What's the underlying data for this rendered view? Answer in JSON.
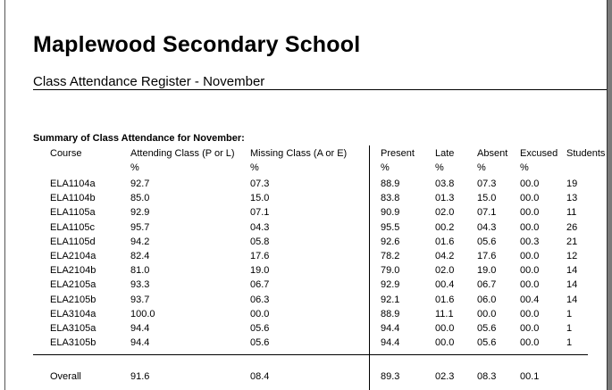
{
  "title": "Maplewood Secondary School",
  "subtitle": "Class Attendance Register - November",
  "summary_heading": "Summary of Class Attendance for November:",
  "headers": {
    "course": "Course",
    "attending": "Attending Class (P or L)",
    "missing": "Missing Class (A or E)",
    "present": "Present",
    "late": "Late",
    "absent": "Absent",
    "excused": "Excused",
    "students": "Students",
    "pct": "%"
  },
  "rows": [
    {
      "course": "ELA1104a",
      "attending": "92.7",
      "missing": "07.3",
      "present": "88.9",
      "late": "03.8",
      "absent": "07.3",
      "excused": "00.0",
      "students": "19"
    },
    {
      "course": "ELA1104b",
      "attending": "85.0",
      "missing": "15.0",
      "present": "83.8",
      "late": "01.3",
      "absent": "15.0",
      "excused": "00.0",
      "students": "13"
    },
    {
      "course": "ELA1105a",
      "attending": "92.9",
      "missing": "07.1",
      "present": "90.9",
      "late": "02.0",
      "absent": "07.1",
      "excused": "00.0",
      "students": "11"
    },
    {
      "course": "ELA1105c",
      "attending": "95.7",
      "missing": "04.3",
      "present": "95.5",
      "late": "00.2",
      "absent": "04.3",
      "excused": "00.0",
      "students": "26"
    },
    {
      "course": "ELA1105d",
      "attending": "94.2",
      "missing": "05.8",
      "present": "92.6",
      "late": "01.6",
      "absent": "05.6",
      "excused": "00.3",
      "students": "21"
    },
    {
      "course": "ELA2104a",
      "attending": "82.4",
      "missing": "17.6",
      "present": "78.2",
      "late": "04.2",
      "absent": "17.6",
      "excused": "00.0",
      "students": "12"
    },
    {
      "course": "ELA2104b",
      "attending": "81.0",
      "missing": "19.0",
      "present": "79.0",
      "late": "02.0",
      "absent": "19.0",
      "excused": "00.0",
      "students": "14"
    },
    {
      "course": "ELA2105a",
      "attending": "93.3",
      "missing": "06.7",
      "present": "92.9",
      "late": "00.4",
      "absent": "06.7",
      "excused": "00.0",
      "students": "14"
    },
    {
      "course": "ELA2105b",
      "attending": "93.7",
      "missing": "06.3",
      "present": "92.1",
      "late": "01.6",
      "absent": "06.0",
      "excused": "00.4",
      "students": "14"
    },
    {
      "course": "ELA3104a",
      "attending": "100.0",
      "missing": "00.0",
      "present": "88.9",
      "late": "11.1",
      "absent": "00.0",
      "excused": "00.0",
      "students": "1"
    },
    {
      "course": "ELA3105a",
      "attending": "94.4",
      "missing": "05.6",
      "present": "94.4",
      "late": "00.0",
      "absent": "05.6",
      "excused": "00.0",
      "students": "1"
    },
    {
      "course": "ELA3105b",
      "attending": "94.4",
      "missing": "05.6",
      "present": "94.4",
      "late": "00.0",
      "absent": "05.6",
      "excused": "00.0",
      "students": "1"
    }
  ],
  "overall": {
    "course": "Overall",
    "attending": "91.6",
    "missing": "08.4",
    "present": "89.3",
    "late": "02.3",
    "absent": "08.3",
    "excused": "00.1"
  }
}
